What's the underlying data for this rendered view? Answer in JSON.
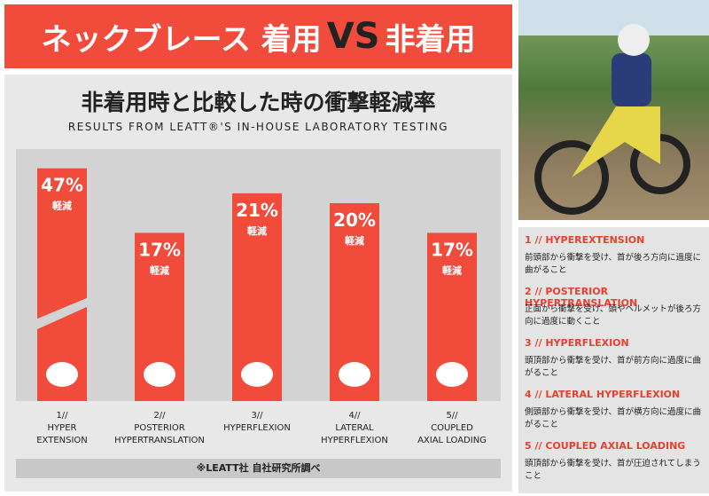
{
  "header": {
    "title_left": "ネックブレース 着用",
    "vs": "VS",
    "title_right": "非着用"
  },
  "chart_data": {
    "type": "bar",
    "title": "非着用時と比較した時の衝撃軽減率",
    "subtitle": "RESULTS FROM LEATT®'S IN-HOUSE LABORATORY TESTING",
    "categories": [
      "1//\nHYPER\nEXTENSION",
      "2//\nPOSTERIOR\nHYPERTRANSLATION",
      "3//\nHYPERFLEXION",
      "4//\nLATERAL\nHYPERFLEXION",
      "5//\nCOUPLED\nAXIAL LOADING"
    ],
    "values": [
      47,
      17,
      21,
      20,
      17
    ],
    "value_labels": [
      "47%",
      "17%",
      "21%",
      "20%",
      "17%"
    ],
    "value_note": "軽減",
    "color": "#f04b3b",
    "footnote": "※LEATT社 自社研究所調べ"
  },
  "legend_items": [
    {
      "title": "1 // HYPEREXTENSION",
      "description": "前頭部から衝撃を受け、首が後ろ方向に過度に曲がること"
    },
    {
      "title": "2 // POSTERIOR HYPERTRANSLATION",
      "description": "正面から衝撃を受け、頭やヘルメットが後ろ方向に過度に動くこと"
    },
    {
      "title": "3 // HYPERFLEXION",
      "description": "頭頂部から衝撃を受け、首が前方向に過度に曲がること"
    },
    {
      "title": "4 // LATERAL HYPERFLEXION",
      "description": "側頭部から衝撃を受け、首が横方向に過度に曲がること"
    },
    {
      "title": "5 // COUPLED AXIAL LOADING",
      "description": "頭頂部から衝撃を受け、首が圧迫されてしまうこと"
    }
  ]
}
